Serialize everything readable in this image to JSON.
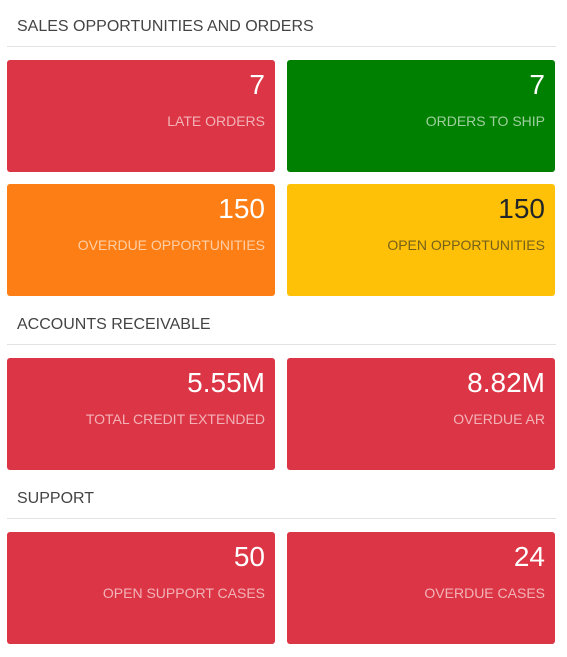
{
  "sections": [
    {
      "title": "SALES OPPORTUNITIES AND ORDERS",
      "tiles": [
        {
          "value": "7",
          "label": "LATE ORDERS",
          "color": "#dc3545"
        },
        {
          "value": "7",
          "label": "ORDERS TO SHIP",
          "color": "#008000"
        },
        {
          "value": "150",
          "label": "OVERDUE OPPORTUNITIES",
          "color": "#fd7e14"
        },
        {
          "value": "150",
          "label": "OPEN OPPORTUNITIES",
          "color": "#ffc107"
        }
      ]
    },
    {
      "title": "ACCOUNTS RECEIVABLE",
      "tiles": [
        {
          "value": "5.55M",
          "label": "TOTAL CREDIT EXTENDED",
          "color": "#dc3545"
        },
        {
          "value": "8.82M",
          "label": "OVERDUE AR",
          "color": "#dc3545"
        }
      ]
    },
    {
      "title": "SUPPORT",
      "tiles": [
        {
          "value": "50",
          "label": "OPEN SUPPORT CASES",
          "color": "#dc3545"
        },
        {
          "value": "24",
          "label": "OVERDUE CASES",
          "color": "#dc3545"
        }
      ]
    }
  ]
}
